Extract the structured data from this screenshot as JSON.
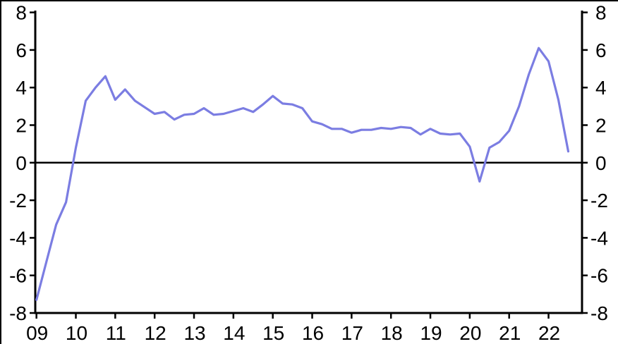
{
  "chart_data": {
    "type": "line",
    "title": "",
    "xlabel": "",
    "ylabel": "",
    "grid": false,
    "zero_line": true,
    "background": "#ffffff",
    "axis_color": "#000000",
    "ylim": [
      -8,
      8
    ],
    "xlim": [
      2008.97,
      2022.85
    ],
    "y_ticks": [
      8,
      6,
      4,
      2,
      0,
      -2,
      -4,
      -6,
      -8
    ],
    "x_ticks": {
      "positions": [
        2009,
        2010,
        2011,
        2012,
        2013,
        2014,
        2015,
        2016,
        2017,
        2018,
        2019,
        2020,
        2021,
        2022
      ],
      "labels": [
        "09",
        "10",
        "11",
        "12",
        "13",
        "14",
        "15",
        "16",
        "17",
        "18",
        "19",
        "20",
        "21",
        "22"
      ]
    },
    "series": [
      {
        "name": "main-line",
        "color": "#7b7de2",
        "x": [
          2009.0,
          2009.25,
          2009.5,
          2009.75,
          2010.0,
          2010.25,
          2010.5,
          2010.75,
          2011.0,
          2011.25,
          2011.5,
          2011.75,
          2012.0,
          2012.25,
          2012.5,
          2012.75,
          2013.0,
          2013.25,
          2013.5,
          2013.75,
          2014.0,
          2014.25,
          2014.5,
          2014.75,
          2015.0,
          2015.25,
          2015.5,
          2015.75,
          2016.0,
          2016.25,
          2016.5,
          2016.75,
          2017.0,
          2017.25,
          2017.5,
          2017.75,
          2018.0,
          2018.25,
          2018.5,
          2018.75,
          2019.0,
          2019.25,
          2019.5,
          2019.75,
          2020.0,
          2020.25,
          2020.5,
          2020.75,
          2021.0,
          2021.25,
          2021.5,
          2021.75,
          2022.0,
          2022.25,
          2022.5
        ],
        "values": [
          -7.3,
          -5.3,
          -3.3,
          -2.1,
          0.8,
          3.3,
          4.0,
          4.6,
          3.35,
          3.9,
          3.3,
          2.95,
          2.6,
          2.7,
          2.3,
          2.55,
          2.6,
          2.9,
          2.55,
          2.6,
          2.75,
          2.9,
          2.7,
          3.1,
          3.55,
          3.15,
          3.1,
          2.9,
          2.2,
          2.05,
          1.8,
          1.8,
          1.6,
          1.75,
          1.75,
          1.85,
          1.8,
          1.9,
          1.85,
          1.5,
          1.8,
          1.55,
          1.5,
          1.55,
          0.85,
          -1.0,
          0.8,
          1.1,
          1.7,
          3.0,
          4.7,
          6.1,
          5.4,
          3.35,
          0.6
        ]
      }
    ]
  }
}
